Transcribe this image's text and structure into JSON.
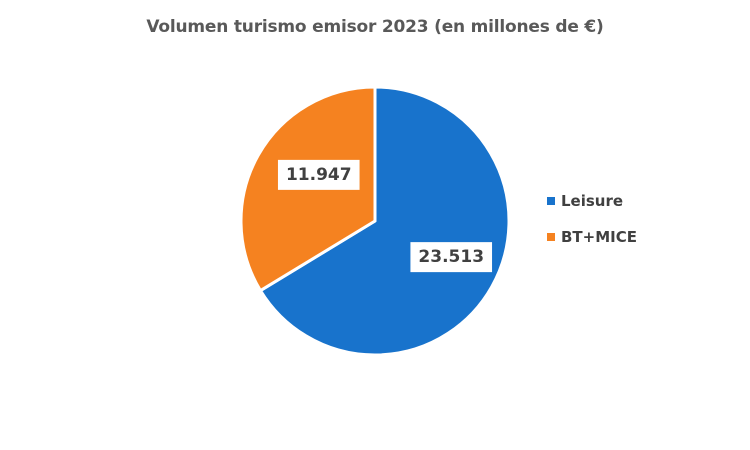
{
  "chart_data": {
    "type": "pie",
    "title": "Volumen turismo emisor 2023 (en millones de €)",
    "categories": [
      "Leisure",
      "BT+MICE"
    ],
    "values": [
      23513,
      11947
    ],
    "value_labels": [
      "23.513",
      "11.947"
    ],
    "colors": [
      "#1873CC",
      "#F58220"
    ],
    "legend_position": "right"
  }
}
